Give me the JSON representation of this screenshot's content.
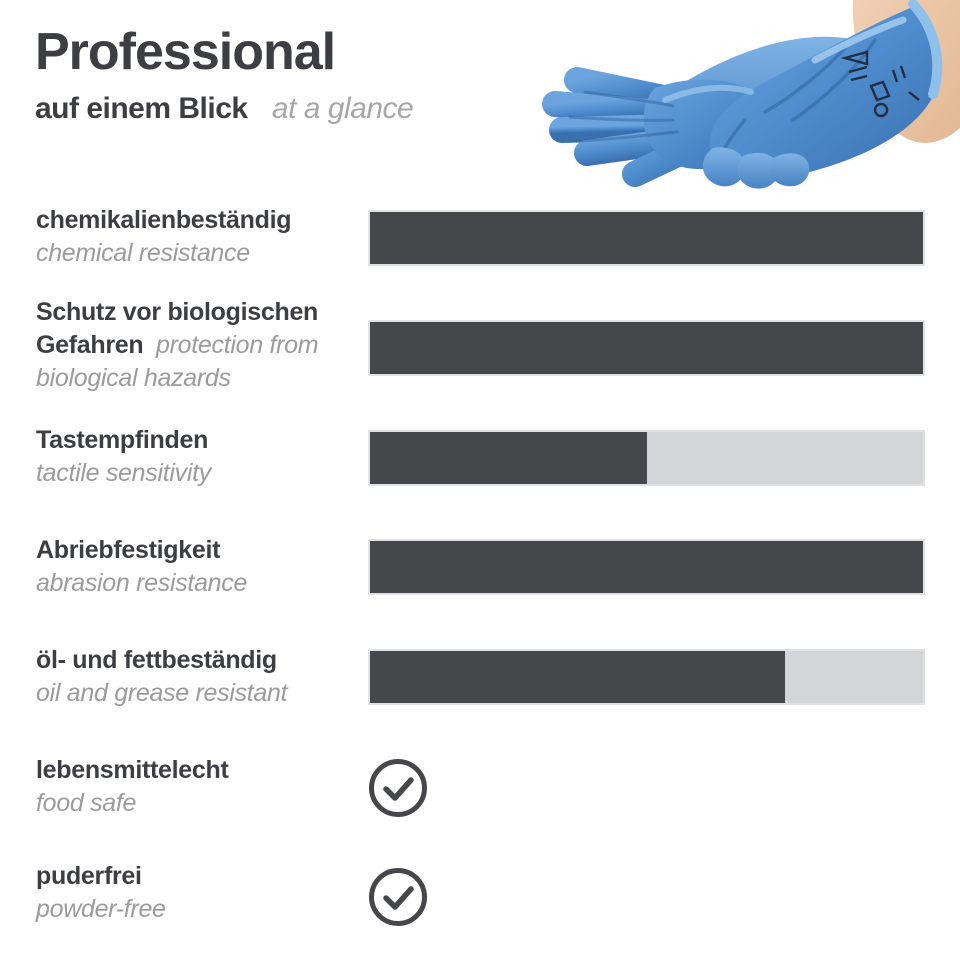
{
  "header": {
    "title": "Professional",
    "subtitle_de": "auf einem Blick",
    "subtitle_en": "at a glance"
  },
  "image": {
    "icon": "blue-protective-gloves-photo"
  },
  "colors": {
    "bar_fill": "#46474b",
    "bar_track": "#d3d5d6",
    "text_dark": "#3d3e42",
    "text_gray": "#9b9b9b",
    "glove_blue": "#4e8ccd",
    "skin": "#e9c5a7"
  },
  "chart_data": {
    "type": "bar",
    "orientation": "horizontal",
    "max": 100,
    "items": [
      {
        "label_de": "chemikalienbeständig",
        "label_en": "chemical resistance",
        "value": 100
      },
      {
        "label_de": "Schutz vor biologischen Gefahren",
        "label_en": "protection from biological hazards",
        "value": 100
      },
      {
        "label_de": "Tastempfinden",
        "label_en": "tactile sensitivity",
        "value": 50
      },
      {
        "label_de": "Abriebfestigkeit",
        "label_en": "abrasion resistance",
        "value": 100
      },
      {
        "label_de": "öl- und fettbeständig",
        "label_en": "oil and grease resistant",
        "value": 75
      }
    ],
    "checks": [
      {
        "label_de": "lebensmittelecht",
        "label_en": "food safe",
        "checked": true,
        "icon": "check-circle-icon"
      },
      {
        "label_de": "puderfrei",
        "label_en": "powder-free",
        "checked": true,
        "icon": "check-circle-icon"
      }
    ]
  }
}
